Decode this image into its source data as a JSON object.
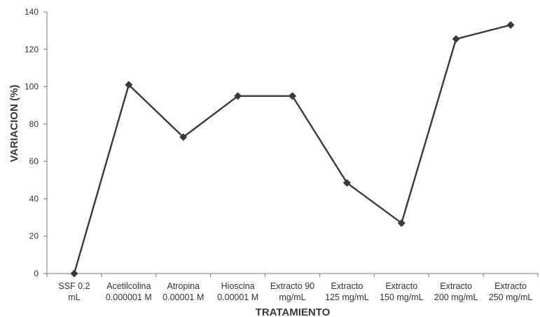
{
  "chart_data": {
    "type": "line",
    "title": "",
    "xlabel": "TRATAMIENTO",
    "ylabel": "VARIACION (%)",
    "ylim": [
      0,
      140
    ],
    "yticks": [
      0,
      20,
      40,
      60,
      80,
      100,
      120,
      140
    ],
    "grid": false,
    "legend": "none",
    "categories": [
      [
        "SSF 0.2",
        "mL"
      ],
      [
        "Acetilcolina",
        "0.000001 M"
      ],
      [
        "Atropina",
        "0.00001 M"
      ],
      [
        "Hioscina",
        "0.00001 M"
      ],
      [
        "Extracto 90",
        "mg/mL"
      ],
      [
        "Extracto",
        "125 mg/mL"
      ],
      [
        "Extracto",
        "150 mg/mL"
      ],
      [
        "Extracto",
        "200 mg/mL"
      ],
      [
        "Extracto",
        "250 mg/mL"
      ]
    ],
    "series": [
      {
        "values": [
          0,
          101,
          73,
          95,
          95,
          48.5,
          27,
          125.5,
          133
        ],
        "marker": "diamond",
        "color": "#3a3a3a"
      }
    ]
  }
}
